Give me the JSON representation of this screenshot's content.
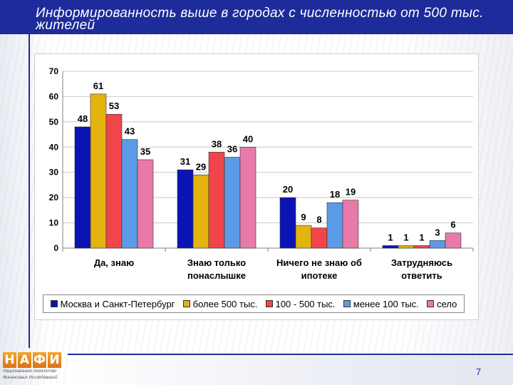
{
  "header": {
    "title": "Информированность выше в городах с численностью от 500 тыс. жителей"
  },
  "logo": {
    "letters": [
      "Н",
      "А",
      "Ф",
      "И"
    ],
    "subtitle_line1": "Национальное Агентство",
    "subtitle_line2": "Финансовых Исследований"
  },
  "page_number": "7",
  "colors": {
    "header": "#1d2c9a",
    "series": [
      "#0a14b4",
      "#e3b310",
      "#f0454b",
      "#5b9ae6",
      "#e77aa8"
    ]
  },
  "chart_data": {
    "type": "bar",
    "categories": [
      [
        "Да, знаю"
      ],
      [
        "Знаю только",
        "понаслышке"
      ],
      [
        "Ничего не знаю об",
        "ипотеке"
      ],
      [
        "Затрудняюсь",
        "ответить"
      ]
    ],
    "series": [
      {
        "name": "Москва и Санкт-Петербург",
        "values": [
          48,
          31,
          20,
          1
        ]
      },
      {
        "name": "более 500 тыс.",
        "values": [
          61,
          29,
          9,
          1
        ]
      },
      {
        "name": "100 - 500 тыс.",
        "values": [
          53,
          38,
          8,
          1
        ]
      },
      {
        "name": "менее 100 тыс.",
        "values": [
          43,
          36,
          18,
          3
        ]
      },
      {
        "name": "село",
        "values": [
          35,
          40,
          19,
          6
        ]
      }
    ],
    "ylim": [
      0,
      70
    ],
    "yticks": [
      0,
      10,
      20,
      30,
      40,
      50,
      60,
      70
    ],
    "grid": true,
    "legend": "bottom",
    "data_labels": true
  }
}
